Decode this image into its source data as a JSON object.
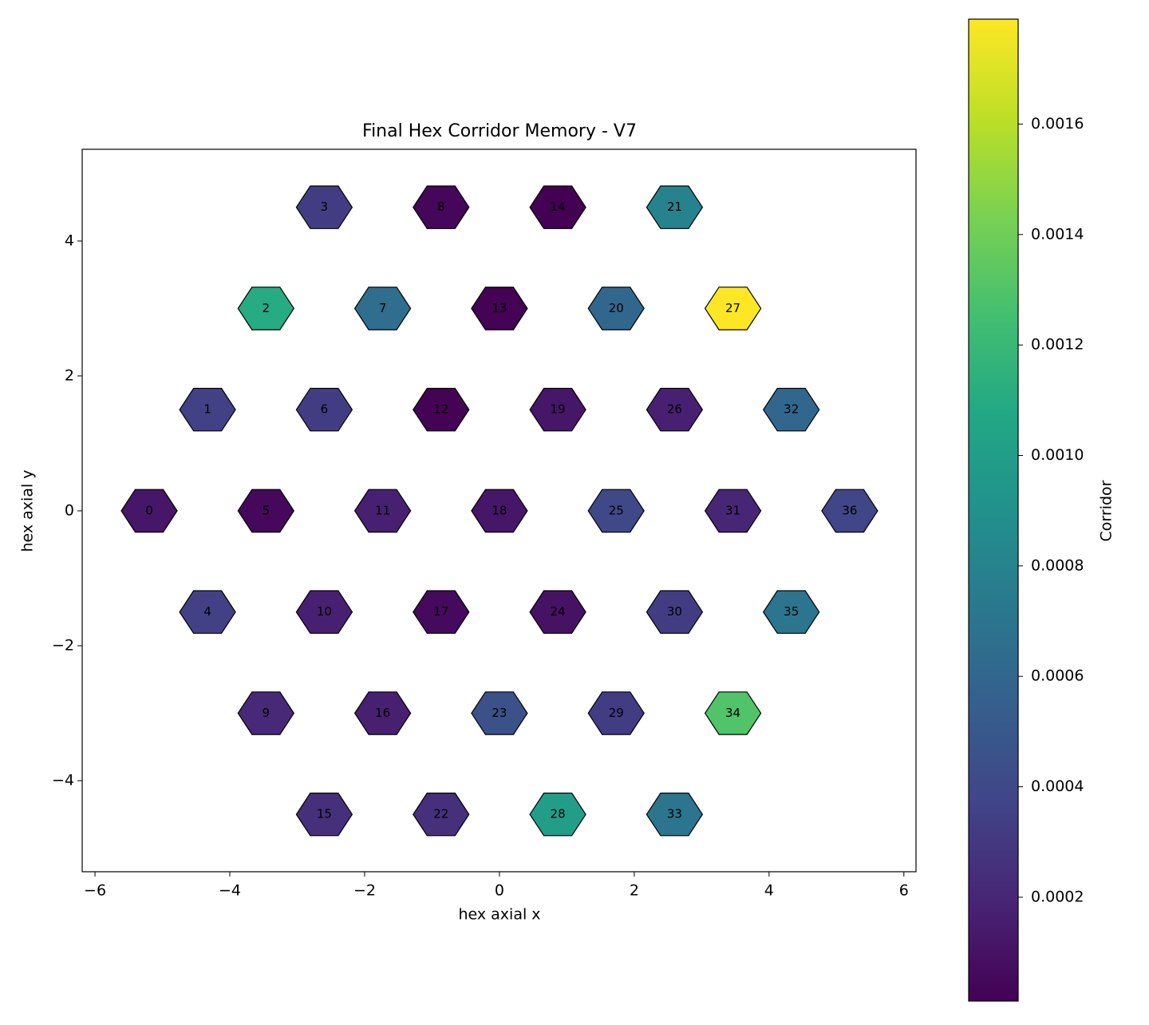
{
  "chart_data": {
    "type": "hex",
    "title": "Final Hex Corridor Memory - V7",
    "x_label": "hex axial x",
    "y_label": "hex axial y",
    "colorbar_label": "Corridor",
    "colormap": "viridis",
    "labels": [
      0,
      1,
      2,
      3,
      4,
      5,
      6,
      7,
      8,
      9,
      10,
      11,
      12,
      13,
      14,
      15,
      16,
      17,
      18,
      19,
      20,
      21,
      22,
      23,
      24,
      25,
      26,
      27,
      28,
      29,
      30,
      31,
      32,
      33,
      34,
      35,
      36
    ],
    "x": [
      -5.196,
      -4.33,
      -3.464,
      -2.598,
      -4.33,
      -3.464,
      -2.598,
      -1.732,
      -0.866,
      -3.464,
      -2.598,
      -1.732,
      -0.866,
      0,
      0.866,
      -2.598,
      -1.732,
      -0.866,
      0,
      0.866,
      1.732,
      2.598,
      -0.866,
      0,
      0.866,
      1.732,
      2.598,
      3.464,
      0.866,
      1.732,
      2.598,
      3.464,
      4.33,
      2.598,
      3.464,
      4.33,
      5.196
    ],
    "y": [
      0,
      1.5,
      3,
      4.5,
      -1.5,
      0,
      1.5,
      3,
      4.5,
      -3,
      -1.5,
      0,
      1.5,
      3,
      4.5,
      -4.5,
      -3,
      -1.5,
      0,
      1.5,
      3,
      4.5,
      -4.5,
      -3,
      -1.5,
      0,
      1.5,
      3,
      -4.5,
      -3,
      -1.5,
      0,
      1.5,
      -4.5,
      -3,
      -1.5,
      0
    ],
    "values": [
      0.00012,
      0.00035,
      0.0011,
      0.00033,
      0.00035,
      5e-05,
      0.00033,
      0.00065,
      4e-05,
      0.00022,
      0.00017,
      0.00017,
      2e-05,
      2e-05,
      1.2e-05,
      0.00025,
      0.00017,
      6e-05,
      0.00012,
      0.00012,
      0.0006,
      0.0008,
      0.00025,
      0.00045,
      0.0001,
      0.0004,
      0.00017,
      0.00179,
      0.001,
      0.00033,
      0.00033,
      0.0002,
      0.0006,
      0.0007,
      0.0013,
      0.0007,
      0.00038
    ],
    "xlim": [
      -6.19,
      6.18
    ],
    "ylim": [
      -5.35,
      5.36
    ],
    "clim": [
      1.2e-05,
      0.00179
    ],
    "xticks": [
      {
        "value": -6,
        "label": "−6"
      },
      {
        "value": -4,
        "label": "−4"
      },
      {
        "value": -2,
        "label": "−2"
      },
      0,
      2,
      4,
      6
    ],
    "yticks": [
      {
        "value": -4,
        "label": "−4"
      },
      {
        "value": -2,
        "label": "−2"
      },
      0,
      2,
      4
    ],
    "cticks": [
      0.0002,
      0.0004,
      0.0006,
      0.0008,
      {
        "value": 0.001,
        "label": "0.0010"
      },
      0.0012,
      0.0014,
      0.0016
    ]
  }
}
